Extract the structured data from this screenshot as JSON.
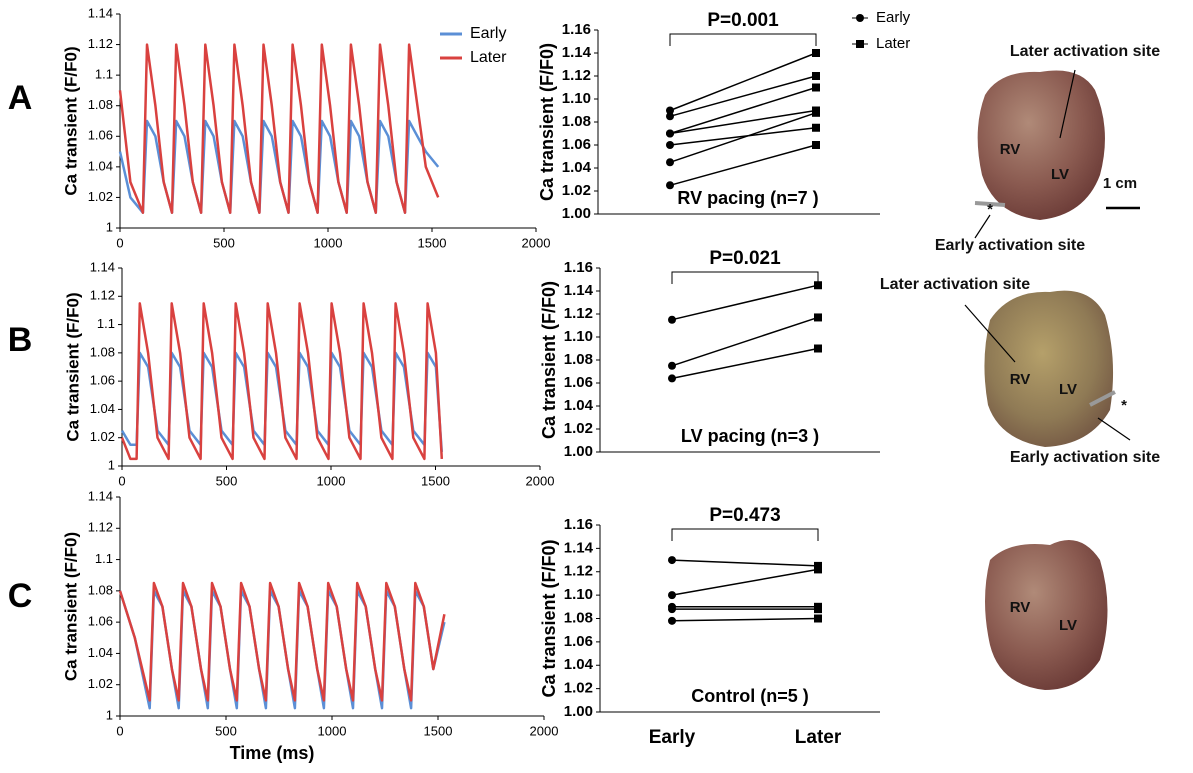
{
  "chart_data": [
    {
      "type": "line",
      "panel": "A",
      "ylabel": "Ca transient (F/F0)",
      "x": [
        0,
        50,
        110,
        130,
        170,
        210,
        250,
        270,
        310,
        350,
        390,
        410,
        450,
        490,
        530,
        550,
        590,
        630,
        670,
        690,
        730,
        770,
        810,
        830,
        870,
        910,
        950,
        970,
        1010,
        1050,
        1090,
        1110,
        1150,
        1190,
        1230,
        1250,
        1290,
        1330,
        1370,
        1390,
        1430,
        1470,
        1530
      ],
      "series": [
        {
          "name": "Early",
          "color": "#5b8fd6",
          "values": [
            1.05,
            1.02,
            1.01,
            1.07,
            1.06,
            1.03,
            1.01,
            1.07,
            1.06,
            1.03,
            1.01,
            1.07,
            1.06,
            1.03,
            1.01,
            1.07,
            1.06,
            1.03,
            1.01,
            1.07,
            1.06,
            1.03,
            1.01,
            1.07,
            1.06,
            1.03,
            1.01,
            1.07,
            1.06,
            1.03,
            1.01,
            1.07,
            1.06,
            1.03,
            1.01,
            1.07,
            1.06,
            1.03,
            1.01,
            1.07,
            1.06,
            1.05,
            1.04
          ]
        },
        {
          "name": "Later",
          "color": "#d9413f",
          "values": [
            1.09,
            1.03,
            1.01,
            1.12,
            1.08,
            1.03,
            1.01,
            1.12,
            1.08,
            1.03,
            1.01,
            1.12,
            1.08,
            1.03,
            1.01,
            1.12,
            1.08,
            1.03,
            1.01,
            1.12,
            1.08,
            1.03,
            1.01,
            1.12,
            1.08,
            1.03,
            1.01,
            1.12,
            1.08,
            1.03,
            1.01,
            1.12,
            1.08,
            1.03,
            1.01,
            1.12,
            1.08,
            1.03,
            1.01,
            1.12,
            1.08,
            1.04,
            1.02
          ]
        }
      ],
      "xlim": [
        0,
        2000
      ],
      "xticks": [
        0,
        500,
        1000,
        1500,
        2000
      ],
      "ylim": [
        1,
        1.14
      ],
      "yticks": [
        1,
        1.02,
        1.04,
        1.06,
        1.08,
        1.1,
        1.12,
        1.14
      ],
      "legend": "top-right"
    },
    {
      "type": "line",
      "panel": "B",
      "ylabel": "Ca transient (F/F0)",
      "x": [
        0,
        40,
        70,
        85,
        125,
        170,
        223,
        238,
        278,
        323,
        376,
        391,
        431,
        476,
        529,
        544,
        584,
        629,
        682,
        697,
        737,
        782,
        835,
        850,
        890,
        935,
        988,
        1003,
        1043,
        1088,
        1141,
        1156,
        1196,
        1241,
        1294,
        1309,
        1349,
        1394,
        1447,
        1462,
        1502,
        1530
      ],
      "series": [
        {
          "name": "Early",
          "color": "#5b8fd6",
          "values": [
            1.025,
            1.015,
            1.015,
            1.08,
            1.07,
            1.025,
            1.015,
            1.08,
            1.07,
            1.025,
            1.015,
            1.08,
            1.07,
            1.025,
            1.015,
            1.08,
            1.07,
            1.025,
            1.015,
            1.08,
            1.07,
            1.025,
            1.015,
            1.08,
            1.07,
            1.025,
            1.015,
            1.08,
            1.07,
            1.025,
            1.015,
            1.08,
            1.07,
            1.025,
            1.015,
            1.08,
            1.07,
            1.025,
            1.015,
            1.08,
            1.07,
            1.01
          ]
        },
        {
          "name": "Later",
          "color": "#d9413f",
          "values": [
            1.02,
            1.005,
            1.005,
            1.115,
            1.08,
            1.02,
            1.005,
            1.115,
            1.08,
            1.02,
            1.005,
            1.115,
            1.08,
            1.02,
            1.005,
            1.115,
            1.08,
            1.02,
            1.005,
            1.115,
            1.08,
            1.02,
            1.005,
            1.115,
            1.08,
            1.02,
            1.005,
            1.115,
            1.08,
            1.02,
            1.005,
            1.115,
            1.08,
            1.02,
            1.005,
            1.115,
            1.08,
            1.02,
            1.005,
            1.115,
            1.08,
            1.005
          ]
        }
      ],
      "xlim": [
        0,
        2000
      ],
      "xticks": [
        0,
        500,
        1000,
        1500,
        2000
      ],
      "ylim": [
        1,
        1.14
      ],
      "yticks": [
        1,
        1.02,
        1.04,
        1.06,
        1.08,
        1.1,
        1.12,
        1.14
      ]
    },
    {
      "type": "line",
      "panel": "C",
      "ylabel": "Ca transient (F/F0)",
      "xlabel": "Time (ms)",
      "x": [
        0,
        70,
        140,
        160,
        200,
        245,
        277,
        297,
        337,
        382,
        414,
        434,
        474,
        519,
        551,
        571,
        611,
        656,
        688,
        708,
        748,
        793,
        825,
        845,
        885,
        930,
        962,
        982,
        1022,
        1067,
        1099,
        1119,
        1159,
        1204,
        1236,
        1256,
        1296,
        1341,
        1373,
        1393,
        1433,
        1478,
        1530
      ],
      "series": [
        {
          "name": "Early",
          "color": "#5b8fd6",
          "values": [
            1.08,
            1.05,
            1.005,
            1.08,
            1.07,
            1.03,
            1.005,
            1.08,
            1.07,
            1.03,
            1.005,
            1.08,
            1.07,
            1.03,
            1.005,
            1.08,
            1.07,
            1.03,
            1.005,
            1.08,
            1.07,
            1.03,
            1.005,
            1.08,
            1.07,
            1.03,
            1.005,
            1.08,
            1.07,
            1.03,
            1.005,
            1.08,
            1.07,
            1.03,
            1.005,
            1.08,
            1.07,
            1.03,
            1.005,
            1.08,
            1.07,
            1.03,
            1.06
          ]
        },
        {
          "name": "Later",
          "color": "#d9413f",
          "values": [
            1.08,
            1.05,
            1.01,
            1.085,
            1.07,
            1.03,
            1.01,
            1.085,
            1.07,
            1.03,
            1.01,
            1.085,
            1.07,
            1.03,
            1.01,
            1.085,
            1.07,
            1.03,
            1.01,
            1.085,
            1.07,
            1.03,
            1.01,
            1.085,
            1.07,
            1.03,
            1.01,
            1.085,
            1.07,
            1.03,
            1.01,
            1.085,
            1.07,
            1.03,
            1.01,
            1.085,
            1.07,
            1.03,
            1.01,
            1.085,
            1.07,
            1.03,
            1.065
          ]
        }
      ],
      "xlim": [
        0,
        2000
      ],
      "xticks": [
        0,
        500,
        1000,
        1500,
        2000
      ],
      "ylim": [
        1,
        1.14
      ],
      "yticks": [
        1,
        1.02,
        1.04,
        1.06,
        1.08,
        1.1,
        1.12,
        1.14
      ]
    },
    {
      "type": "paired",
      "ylabel": "Ca transient (F/F0)",
      "annotation": "P=0.001",
      "caption": "RV pacing (n=7 )",
      "legend": [
        "Early",
        "Later"
      ],
      "markers": [
        "circle",
        "square"
      ],
      "color": "#000000",
      "series": [
        {
          "values": [
            1.09,
            1.14
          ]
        },
        {
          "values": [
            1.085,
            1.12
          ]
        },
        {
          "values": [
            1.07,
            1.11
          ]
        },
        {
          "values": [
            1.07,
            1.09
          ]
        },
        {
          "values": [
            1.06,
            1.075
          ]
        },
        {
          "values": [
            1.045,
            1.088
          ]
        },
        {
          "values": [
            1.025,
            1.06
          ]
        }
      ],
      "ylim": [
        1,
        1.16
      ],
      "yticks": [
        {
          "value": 1,
          "label": "1.00"
        },
        {
          "value": 1.02,
          "label": "1.02"
        },
        {
          "value": 1.04,
          "label": "1.04"
        },
        {
          "value": 1.06,
          "label": "1.06"
        },
        {
          "value": 1.08,
          "label": "1.08"
        },
        {
          "value": 1.1,
          "label": "1.10"
        },
        {
          "value": 1.12,
          "label": "1.12"
        },
        {
          "value": 1.14,
          "label": "1.14"
        },
        {
          "value": 1.16,
          "label": "1.16"
        }
      ]
    },
    {
      "type": "paired",
      "ylabel": "Ca transient (F/F0)",
      "annotation": "P=0.021",
      "caption": "LV pacing  (n=3 )",
      "markers": [
        "circle",
        "square"
      ],
      "color": "#000000",
      "series": [
        {
          "values": [
            1.115,
            1.145
          ]
        },
        {
          "values": [
            1.075,
            1.117
          ]
        },
        {
          "values": [
            1.064,
            1.09
          ]
        }
      ],
      "ylim": [
        1,
        1.16
      ],
      "yticks": [
        {
          "value": 1,
          "label": "1.00"
        },
        {
          "value": 1.02,
          "label": "1.02"
        },
        {
          "value": 1.04,
          "label": "1.04"
        },
        {
          "value": 1.06,
          "label": "1.06"
        },
        {
          "value": 1.08,
          "label": "1.08"
        },
        {
          "value": 1.1,
          "label": "1.10"
        },
        {
          "value": 1.12,
          "label": "1.12"
        },
        {
          "value": 1.14,
          "label": "1.14"
        },
        {
          "value": 1.16,
          "label": "1.16"
        }
      ]
    },
    {
      "type": "paired",
      "ylabel": "Ca transient (F/F0)",
      "annotation": "P=0.473",
      "caption": "Control (n=5 )",
      "categories": [
        "Early",
        "Later"
      ],
      "markers": [
        "circle",
        "square"
      ],
      "color": "#000000",
      "series": [
        {
          "values": [
            1.13,
            1.125
          ]
        },
        {
          "values": [
            1.1,
            1.122
          ]
        },
        {
          "values": [
            1.09,
            1.09
          ]
        },
        {
          "values": [
            1.088,
            1.088
          ]
        },
        {
          "values": [
            1.078,
            1.08
          ]
        }
      ],
      "ylim": [
        1,
        1.16
      ],
      "yticks": [
        {
          "value": 1,
          "label": "1.00"
        },
        {
          "value": 1.02,
          "label": "1.02"
        },
        {
          "value": 1.04,
          "label": "1.04"
        },
        {
          "value": 1.06,
          "label": "1.06"
        },
        {
          "value": 1.08,
          "label": "1.08"
        },
        {
          "value": 1.1,
          "label": "1.10"
        },
        {
          "value": 1.12,
          "label": "1.12"
        },
        {
          "value": 1.14,
          "label": "1.14"
        },
        {
          "value": 1.16,
          "label": "1.16"
        }
      ]
    }
  ],
  "images": [
    {
      "labels": [
        "Later activation site",
        "RV",
        "LV",
        "1 cm",
        "*",
        "Early activation site"
      ]
    },
    {
      "labels": [
        "Later activation site",
        "RV",
        "LV",
        "*",
        "Early activation site"
      ]
    },
    {
      "labels": [
        "RV",
        "LV"
      ]
    }
  ]
}
